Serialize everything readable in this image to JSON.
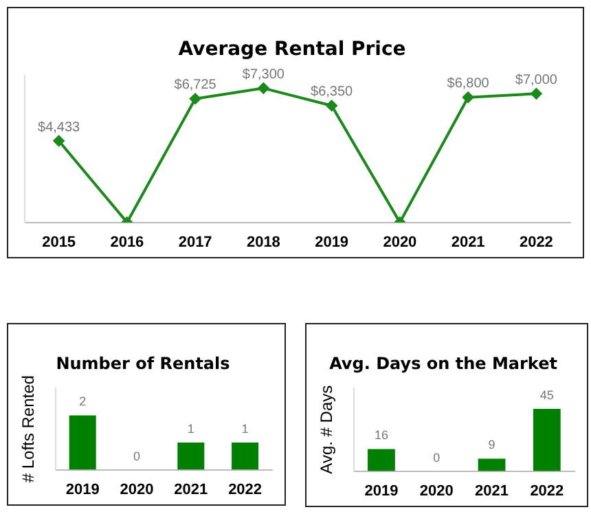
{
  "chart_data": [
    {
      "type": "line",
      "title": "Average Rental Price",
      "categories": [
        "2015",
        "2016",
        "2017",
        "2018",
        "2019",
        "2020",
        "2021",
        "2022"
      ],
      "series": [
        {
          "color": "#1a8a1a",
          "values": [
            4433,
            0,
            6725,
            7300,
            6350,
            0,
            6800,
            7000
          ],
          "value_labels": [
            "$4,433",
            null,
            "$6,725",
            "$7,300",
            "$6,350",
            null,
            "$6,800",
            "$7,000"
          ]
        }
      ],
      "marker": "diamond",
      "line_style": "solid",
      "tick_labels": "x",
      "grid": false,
      "legend": false
    },
    {
      "type": "bar",
      "title": "Number of Rentals",
      "ylabel": "# Lofts Rented",
      "categories": [
        "2019",
        "2020",
        "2021",
        "2022"
      ],
      "series": [
        {
          "color": "#008000",
          "values": [
            2,
            0,
            1,
            1
          ]
        }
      ],
      "data_labels": true,
      "tick_labels": "x",
      "grid": false,
      "legend": false
    },
    {
      "type": "bar",
      "title": "Avg. Days on the Market",
      "ylabel": "Avg. # Days",
      "categories": [
        "2019",
        "2020",
        "2021",
        "2022"
      ],
      "series": [
        {
          "color": "#008000",
          "values": [
            16,
            0,
            9,
            45
          ]
        }
      ],
      "data_labels": true,
      "tick_labels": "x",
      "grid": false,
      "legend": false
    }
  ]
}
